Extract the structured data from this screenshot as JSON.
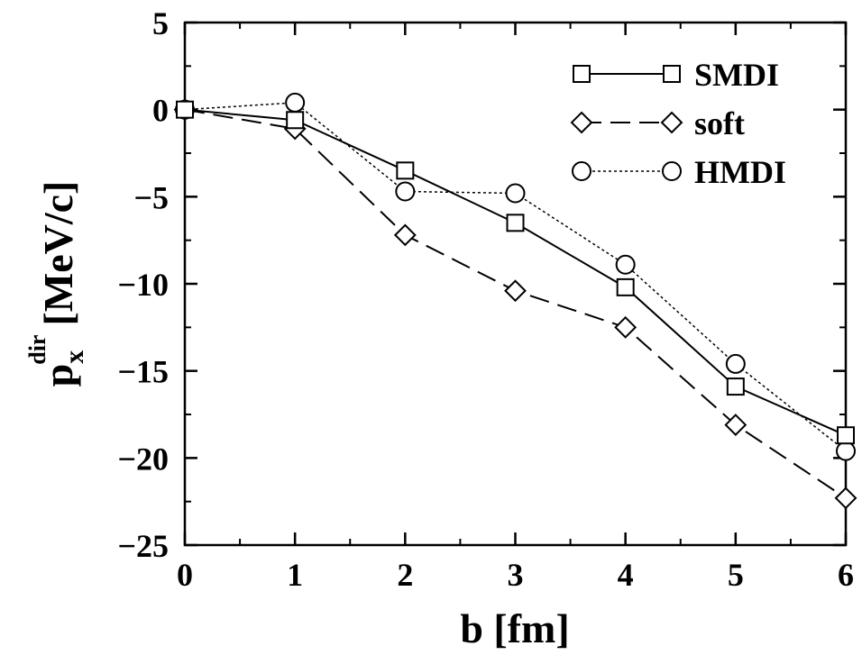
{
  "chart_data": {
    "type": "line",
    "xlabel": "b [fm]",
    "ylabel": {
      "main": "p",
      "subscript": "x",
      "superscript": "dir",
      "unit": "[MeV/c]"
    },
    "xlim": [
      0,
      6
    ],
    "ylim": [
      -25,
      5
    ],
    "xticks": [
      0,
      1,
      2,
      3,
      4,
      5,
      6
    ],
    "yticks": [
      5,
      0,
      -5,
      -10,
      -15,
      -20,
      -25
    ],
    "xtick_labels": [
      "0",
      "1",
      "2",
      "3",
      "4",
      "5",
      "6"
    ],
    "ytick_labels": [
      "5",
      "0",
      "−5",
      "−10",
      "−15",
      "−20",
      "−25"
    ],
    "grid": false,
    "legend_position": "top-right",
    "series": [
      {
        "name": "SMDI",
        "marker": "square",
        "line": "solid",
        "x": [
          0,
          1,
          2,
          3,
          4,
          5,
          6
        ],
        "y": [
          0,
          -0.6,
          -3.5,
          -6.5,
          -10.2,
          -15.9,
          -18.7
        ]
      },
      {
        "name": "soft",
        "marker": "diamond",
        "line": "dashed",
        "x": [
          0,
          1,
          2,
          3,
          4,
          5,
          6
        ],
        "y": [
          0,
          -1.1,
          -7.2,
          -10.4,
          -12.5,
          -18.1,
          -22.3
        ]
      },
      {
        "name": "HMDI",
        "marker": "circle",
        "line": "dotted",
        "x": [
          0,
          1,
          2,
          3,
          4,
          5,
          6
        ],
        "y": [
          0,
          0.4,
          -4.7,
          -4.8,
          -8.9,
          -14.6,
          -19.6
        ]
      }
    ]
  }
}
